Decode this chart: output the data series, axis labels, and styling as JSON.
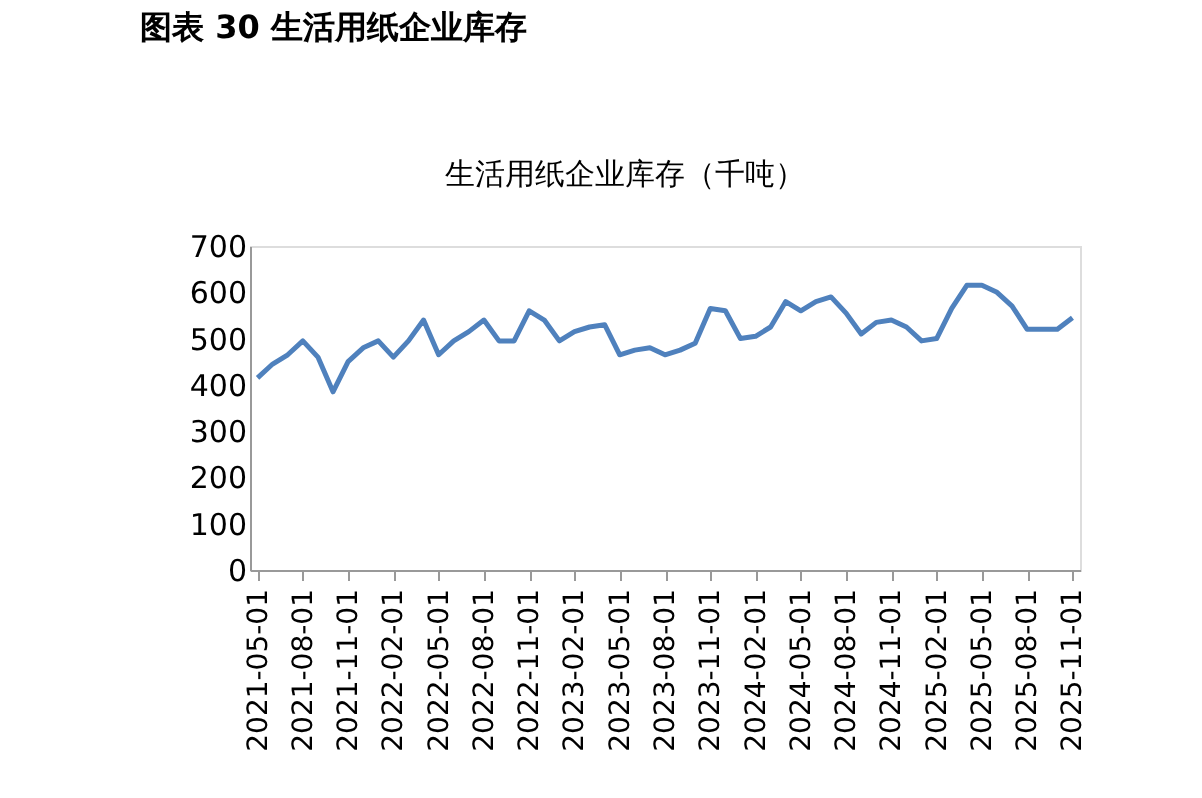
{
  "chart_data": {
    "type": "line",
    "title": "图表 30 生活用纸企业库存",
    "subtitle": "生活用纸企业库存（千吨）",
    "categories": [
      "2021-05-01",
      null,
      null,
      "2021-08-01",
      null,
      null,
      "2021-11-01",
      null,
      null,
      "2022-02-01",
      null,
      null,
      "2022-05-01",
      null,
      null,
      "2022-08-01",
      null,
      null,
      "2022-11-01",
      null,
      null,
      "2023-02-01",
      null,
      null,
      "2023-05-01",
      null,
      null,
      "2023-08-01",
      null,
      null,
      "2023-11-01",
      null,
      null,
      "2024-02-01",
      null,
      null,
      "2024-05-01",
      null,
      null,
      "2024-08-01",
      null,
      null,
      "2024-11-01",
      null,
      null,
      "2025-02-01",
      null,
      null,
      "2025-05-01",
      null,
      null,
      "2025-08-01",
      null,
      null,
      "2025-11-01"
    ],
    "series": [
      {
        "color": "#4f81bd",
        "values": [
          415,
          445,
          465,
          495,
          460,
          385,
          450,
          480,
          495,
          460,
          495,
          540,
          465,
          495,
          515,
          540,
          495,
          495,
          560,
          540,
          495,
          515,
          525,
          530,
          465,
          475,
          480,
          465,
          475,
          490,
          565,
          560,
          500,
          505,
          525,
          580,
          560,
          580,
          590,
          555,
          510,
          535,
          540,
          525,
          495,
          500,
          565,
          615,
          615,
          600,
          570,
          520,
          520,
          520,
          545
        ]
      }
    ],
    "ylim": [
      0,
      700
    ],
    "yticks": [
      0,
      100,
      200,
      300,
      400,
      500,
      600,
      700
    ],
    "grid": false,
    "legend": false,
    "line_style": "solid",
    "marker": "none"
  }
}
